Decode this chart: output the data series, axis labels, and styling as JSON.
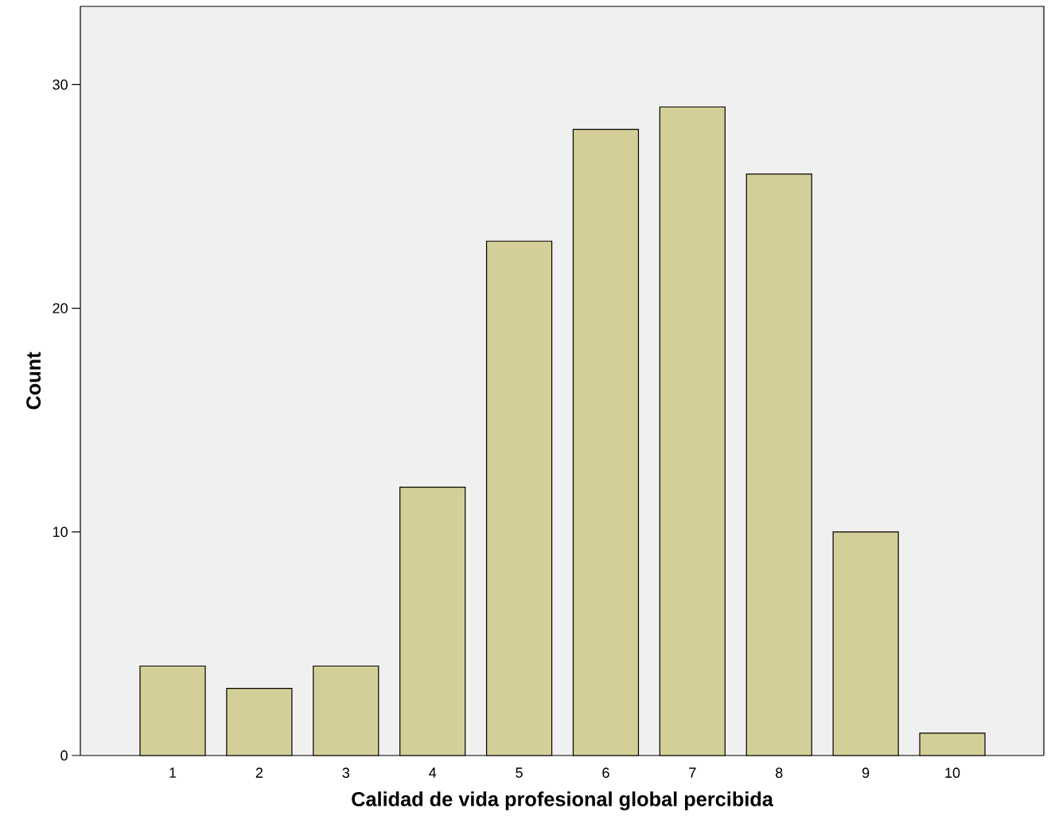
{
  "chart_data": {
    "type": "bar",
    "xlabel": "Calidad de vida profesional global percibida",
    "ylabel": "Count",
    "categories": [
      "1",
      "2",
      "3",
      "4",
      "5",
      "6",
      "7",
      "8",
      "9",
      "10"
    ],
    "values": [
      4,
      3,
      4,
      12,
      23,
      28,
      29,
      26,
      10,
      1
    ],
    "color": "#d4cf98",
    "ylim": [
      0,
      33.5
    ],
    "yticks": [
      0,
      10,
      20,
      30
    ]
  }
}
